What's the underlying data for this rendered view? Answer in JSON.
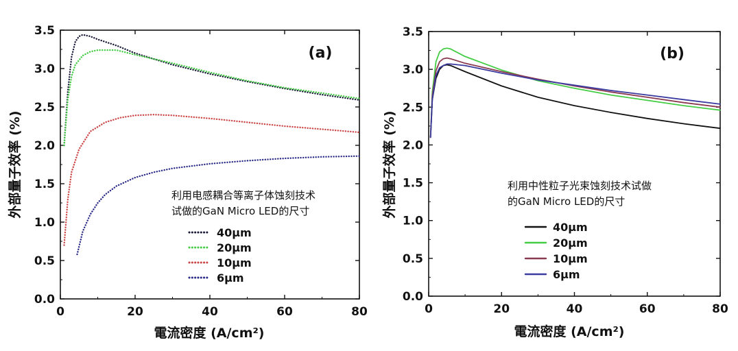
{
  "chart_data": [
    {
      "panel_label": "(a)",
      "type": "line",
      "style": "dotted",
      "xlabel": "電流密度 (A/cm²)",
      "ylabel": "外部量子效率 (%)",
      "xlim": [
        0,
        80
      ],
      "ylim": [
        0,
        3.5
      ],
      "x_ticks": [
        0,
        20,
        40,
        60,
        80
      ],
      "y_ticks": [
        0.0,
        0.5,
        1.0,
        1.5,
        2.0,
        2.5,
        3.0,
        3.5
      ],
      "annotation": [
        "利用电感耦合等离子体蚀刻技术",
        "试做的GaN Micro LED的尺寸"
      ],
      "legend_placement": "inside-lower-middle",
      "series": [
        {
          "name": "40μm",
          "color": "#1a1a3a",
          "points": [
            [
              1,
              2.0
            ],
            [
              2,
              2.7
            ],
            [
              3,
              3.15
            ],
            [
              4,
              3.35
            ],
            [
              5,
              3.42
            ],
            [
              6,
              3.44
            ],
            [
              8,
              3.42
            ],
            [
              10,
              3.38
            ],
            [
              15,
              3.3
            ],
            [
              20,
              3.2
            ],
            [
              30,
              3.05
            ],
            [
              40,
              2.93
            ],
            [
              50,
              2.83
            ],
            [
              60,
              2.74
            ],
            [
              70,
              2.66
            ],
            [
              80,
              2.59
            ]
          ]
        },
        {
          "name": "20μm",
          "color": "#44cc44",
          "points": [
            [
              1,
              2.0
            ],
            [
              2,
              2.6
            ],
            [
              3,
              2.9
            ],
            [
              4,
              3.05
            ],
            [
              6,
              3.17
            ],
            [
              8,
              3.22
            ],
            [
              10,
              3.24
            ],
            [
              15,
              3.24
            ],
            [
              20,
              3.18
            ],
            [
              30,
              3.07
            ],
            [
              40,
              2.95
            ],
            [
              50,
              2.84
            ],
            [
              60,
              2.75
            ],
            [
              70,
              2.68
            ],
            [
              80,
              2.61
            ]
          ]
        },
        {
          "name": "10μm",
          "color": "#cc4444",
          "points": [
            [
              1,
              0.7
            ],
            [
              2,
              1.3
            ],
            [
              3,
              1.65
            ],
            [
              5,
              1.95
            ],
            [
              8,
              2.18
            ],
            [
              12,
              2.3
            ],
            [
              16,
              2.36
            ],
            [
              20,
              2.39
            ],
            [
              25,
              2.4
            ],
            [
              30,
              2.39
            ],
            [
              40,
              2.35
            ],
            [
              50,
              2.3
            ],
            [
              60,
              2.25
            ],
            [
              70,
              2.21
            ],
            [
              80,
              2.17
            ]
          ]
        },
        {
          "name": "6μm",
          "color": "#2a2a88",
          "points": [
            [
              4.5,
              0.58
            ],
            [
              6,
              0.88
            ],
            [
              8,
              1.1
            ],
            [
              10,
              1.25
            ],
            [
              12,
              1.36
            ],
            [
              15,
              1.47
            ],
            [
              20,
              1.58
            ],
            [
              25,
              1.65
            ],
            [
              30,
              1.7
            ],
            [
              40,
              1.76
            ],
            [
              50,
              1.8
            ],
            [
              60,
              1.83
            ],
            [
              70,
              1.85
            ],
            [
              80,
              1.86
            ]
          ]
        }
      ]
    },
    {
      "panel_label": "(b)",
      "type": "line",
      "style": "solid",
      "xlabel": "電流密度 (A/cm²)",
      "ylabel": "外部量子效率 (%)",
      "xlim": [
        0,
        80
      ],
      "ylim": [
        0,
        3.5
      ],
      "x_ticks": [
        0,
        20,
        40,
        60,
        80
      ],
      "y_ticks": [
        0.0,
        0.5,
        1.0,
        1.5,
        2.0,
        2.5,
        3.0,
        3.5
      ],
      "annotation": [
        "利用中性粒子光束蚀刻技术试做",
        "的GaN Micro LED的尺寸"
      ],
      "legend_placement": "inside-lower-middle",
      "series": [
        {
          "name": "40μm",
          "color": "#111111",
          "points": [
            [
              0.5,
              2.1
            ],
            [
              1,
              2.6
            ],
            [
              2,
              2.88
            ],
            [
              3,
              3.0
            ],
            [
              4,
              3.05
            ],
            [
              5,
              3.06
            ],
            [
              6,
              3.05
            ],
            [
              10,
              2.97
            ],
            [
              20,
              2.78
            ],
            [
              30,
              2.63
            ],
            [
              40,
              2.52
            ],
            [
              50,
              2.43
            ],
            [
              60,
              2.35
            ],
            [
              70,
              2.28
            ],
            [
              80,
              2.22
            ]
          ]
        },
        {
          "name": "20μm",
          "color": "#44cc44",
          "points": [
            [
              0.5,
              2.1
            ],
            [
              1,
              2.7
            ],
            [
              2,
              3.1
            ],
            [
              3,
              3.23
            ],
            [
              4,
              3.27
            ],
            [
              5,
              3.28
            ],
            [
              6,
              3.27
            ],
            [
              10,
              3.17
            ],
            [
              20,
              2.99
            ],
            [
              30,
              2.85
            ],
            [
              40,
              2.75
            ],
            [
              50,
              2.66
            ],
            [
              60,
              2.59
            ],
            [
              70,
              2.52
            ],
            [
              80,
              2.46
            ]
          ]
        },
        {
          "name": "10μm",
          "color": "#8a3a50",
          "points": [
            [
              0.5,
              2.1
            ],
            [
              1,
              2.65
            ],
            [
              2,
              2.98
            ],
            [
              3,
              3.1
            ],
            [
              4,
              3.14
            ],
            [
              5,
              3.15
            ],
            [
              6,
              3.14
            ],
            [
              10,
              3.08
            ],
            [
              20,
              2.97
            ],
            [
              30,
              2.87
            ],
            [
              40,
              2.78
            ],
            [
              50,
              2.7
            ],
            [
              60,
              2.63
            ],
            [
              70,
              2.56
            ],
            [
              80,
              2.5
            ]
          ]
        },
        {
          "name": "6μm",
          "color": "#3a3aa0",
          "points": [
            [
              0.5,
              2.1
            ],
            [
              1,
              2.6
            ],
            [
              2,
              2.92
            ],
            [
              3,
              3.02
            ],
            [
              4,
              3.05
            ],
            [
              5,
              3.07
            ],
            [
              6,
              3.07
            ],
            [
              10,
              3.05
            ],
            [
              20,
              2.95
            ],
            [
              30,
              2.86
            ],
            [
              40,
              2.79
            ],
            [
              50,
              2.72
            ],
            [
              60,
              2.66
            ],
            [
              70,
              2.6
            ],
            [
              80,
              2.54
            ]
          ]
        }
      ]
    }
  ]
}
